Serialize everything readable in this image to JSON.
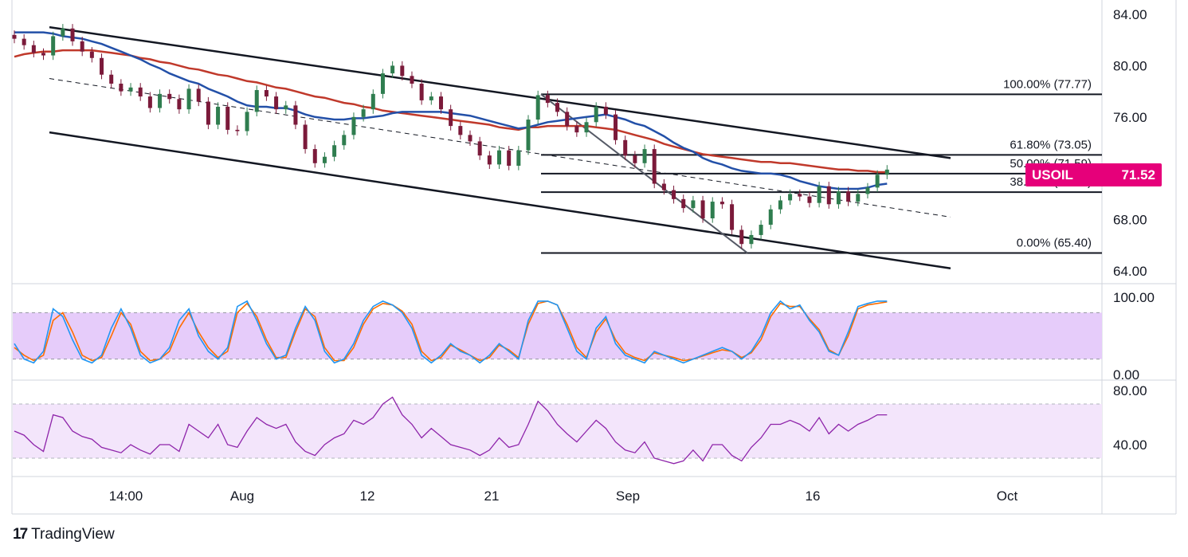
{
  "brand": {
    "name": "TradingView",
    "icon": "tradingview-logo-icon"
  },
  "colors": {
    "ma_fast": "#2350a8",
    "ma_slow": "#c0392b",
    "candle_up": "#2f7d4f",
    "candle_down": "#7b1a3a",
    "stoch_k": "#2196f3",
    "stoch_d": "#ff6d00",
    "stoch_band": "#e6ccfa",
    "rsi_line": "#8e24aa",
    "rsi_band": "#f3e5fb",
    "price_tag": "#e6007a"
  },
  "chart_data": [
    {
      "type": "line",
      "title": "",
      "symbol": "USOIL",
      "last_price": "71.52",
      "y_axis": {
        "ticks": [
          "84.00",
          "80.00",
          "76.00",
          "68.00",
          "64.00"
        ],
        "range": [
          62.8,
          84.3
        ]
      },
      "x_axis": {
        "ticks": [
          "14:00",
          "Aug",
          "12",
          "21",
          "Sep",
          "16",
          "Oct"
        ]
      },
      "close_series": [
        82.1,
        81.6,
        81.0,
        80.8,
        82.3,
        82.9,
        81.9,
        81.1,
        80.6,
        79.3,
        78.6,
        78.0,
        78.3,
        77.6,
        76.7,
        77.8,
        77.4,
        76.6,
        78.2,
        77.2,
        75.4,
        76.8,
        75.0,
        74.9,
        76.4,
        78.1,
        77.6,
        76.6,
        76.9,
        75.4,
        73.5,
        72.4,
        72.9,
        73.8,
        74.6,
        76.0,
        76.6,
        77.8,
        79.4,
        80.0,
        79.2,
        78.6,
        77.3,
        77.6,
        76.6,
        75.3,
        74.6,
        74.1,
        73.0,
        72.3,
        73.4,
        72.2,
        73.4,
        75.8,
        77.7,
        77.1,
        76.4,
        75.3,
        74.8,
        75.6,
        76.8,
        76.2,
        74.2,
        73.0,
        72.4,
        73.5,
        70.8,
        70.3,
        69.6,
        68.9,
        69.5,
        68.1,
        69.4,
        69.2,
        67.2,
        66.1,
        66.8,
        67.6,
        68.8,
        69.5,
        70.0,
        69.8,
        69.3,
        70.6,
        69.2,
        70.2,
        69.4,
        70.0,
        70.5,
        71.5,
        71.9
      ],
      "moving_averages": [
        {
          "role": "fast",
          "values": [
            82.6,
            82.6,
            82.6,
            82.6,
            82.5,
            82.3,
            82.2,
            82.1,
            81.9,
            81.7,
            81.4,
            81.1,
            80.8,
            80.5,
            80.1,
            79.8,
            79.4,
            79.1,
            78.8,
            78.6,
            78.2,
            77.9,
            77.6,
            77.2,
            76.9,
            76.8,
            76.8,
            76.7,
            76.7,
            76.5,
            76.2,
            76.0,
            75.9,
            75.8,
            75.8,
            75.9,
            75.9,
            76.0,
            76.1,
            76.3,
            76.4,
            76.4,
            76.4,
            76.4,
            76.4,
            76.3,
            76.2,
            76.1,
            75.9,
            75.7,
            75.5,
            75.3,
            75.1,
            75.2,
            75.4,
            75.6,
            75.7,
            75.8,
            75.9,
            76.0,
            76.1,
            76.2,
            76.0,
            75.8,
            75.5,
            75.3,
            74.9,
            74.5,
            74.0,
            73.6,
            73.3,
            72.8,
            72.5,
            72.3,
            72.0,
            71.8,
            71.7,
            71.6,
            71.6,
            71.5,
            71.3,
            71.0,
            70.8,
            70.6,
            70.5,
            70.4,
            70.4,
            70.4,
            70.5,
            70.7,
            70.8
          ]
        },
        {
          "role": "slow",
          "values": [
            80.7,
            80.9,
            81.0,
            81.1,
            81.1,
            81.2,
            81.2,
            81.2,
            81.2,
            81.1,
            81.0,
            80.9,
            80.8,
            80.6,
            80.5,
            80.3,
            80.2,
            80.0,
            79.8,
            79.7,
            79.5,
            79.3,
            79.2,
            79.0,
            78.8,
            78.7,
            78.5,
            78.3,
            78.2,
            78.0,
            77.8,
            77.6,
            77.5,
            77.3,
            77.1,
            77.0,
            76.8,
            76.7,
            76.5,
            76.4,
            76.3,
            76.2,
            76.1,
            76.0,
            75.9,
            75.8,
            75.7,
            75.6,
            75.5,
            75.4,
            75.2,
            75.1,
            75.0,
            75.2,
            75.2,
            75.3,
            75.3,
            75.3,
            75.3,
            75.3,
            75.2,
            75.1,
            75.0,
            74.8,
            74.6,
            74.4,
            74.2,
            73.9,
            73.7,
            73.5,
            73.3,
            73.1,
            73.0,
            72.9,
            72.8,
            72.7,
            72.6,
            72.5,
            72.5,
            72.4,
            72.4,
            72.3,
            72.2,
            72.1,
            72.0,
            71.9,
            71.9,
            71.8,
            71.8,
            71.7,
            71.7
          ]
        }
      ],
      "fibonacci": [
        {
          "label": "100.00% (77.77)",
          "value": 77.77
        },
        {
          "label": "61.80% (73.05)",
          "value": 73.05
        },
        {
          "label": "50.00% (71.59)",
          "value": 71.59
        },
        {
          "label": "38.20% (70.14)",
          "value": 70.14
        },
        {
          "label": "0.00% (65.40)",
          "value": 65.4
        }
      ],
      "channel": {
        "upper": [
          [
            0,
            83.0
          ],
          [
            87,
            72.8
          ]
        ],
        "mid": [
          [
            0,
            79.0
          ],
          [
            87,
            68.2
          ]
        ],
        "lower": [
          [
            0,
            74.8
          ],
          [
            87,
            64.2
          ]
        ]
      }
    },
    {
      "type": "line",
      "title": "",
      "indicator": "stochastic",
      "y_axis": {
        "ticks": [
          "100.00",
          "0.00"
        ],
        "range": [
          -5,
          105
        ]
      },
      "band": [
        20,
        80
      ],
      "series": [
        {
          "role": "k",
          "values": [
            40,
            20,
            15,
            30,
            85,
            75,
            45,
            20,
            15,
            25,
            60,
            85,
            60,
            25,
            15,
            20,
            35,
            70,
            85,
            50,
            30,
            20,
            35,
            88,
            95,
            70,
            40,
            20,
            25,
            60,
            88,
            70,
            30,
            15,
            20,
            40,
            70,
            88,
            95,
            90,
            80,
            60,
            25,
            15,
            25,
            40,
            30,
            25,
            15,
            25,
            40,
            30,
            20,
            70,
            95,
            95,
            90,
            60,
            30,
            20,
            60,
            75,
            40,
            25,
            20,
            15,
            30,
            25,
            20,
            15,
            20,
            25,
            30,
            35,
            30,
            20,
            30,
            50,
            80,
            95,
            85,
            90,
            70,
            55,
            30,
            25,
            55,
            88,
            92,
            95,
            95
          ]
        },
        {
          "role": "d",
          "values": [
            35,
            25,
            18,
            25,
            70,
            80,
            55,
            25,
            18,
            22,
            50,
            80,
            65,
            30,
            18,
            20,
            30,
            60,
            80,
            55,
            35,
            22,
            30,
            80,
            92,
            75,
            45,
            22,
            22,
            55,
            85,
            75,
            35,
            18,
            18,
            35,
            65,
            85,
            92,
            90,
            82,
            65,
            30,
            18,
            22,
            38,
            32,
            25,
            18,
            22,
            38,
            32,
            22,
            65,
            92,
            95,
            90,
            65,
            35,
            22,
            55,
            72,
            45,
            28,
            22,
            18,
            28,
            25,
            22,
            18,
            20,
            24,
            28,
            32,
            30,
            22,
            28,
            45,
            75,
            92,
            88,
            88,
            72,
            58,
            32,
            25,
            50,
            85,
            90,
            92,
            94
          ]
        }
      ]
    },
    {
      "type": "line",
      "title": "",
      "indicator": "rsi",
      "y_axis": {
        "ticks": [
          "80.00",
          "40.00"
        ],
        "range": [
          23,
          84
        ]
      },
      "band": [
        30,
        70
      ],
      "series": [
        {
          "role": "rsi",
          "values": [
            50,
            47,
            40,
            35,
            62,
            60,
            50,
            46,
            44,
            38,
            36,
            34,
            40,
            36,
            33,
            40,
            40,
            35,
            55,
            50,
            45,
            55,
            40,
            38,
            50,
            60,
            55,
            52,
            55,
            42,
            35,
            32,
            40,
            45,
            48,
            58,
            55,
            60,
            70,
            75,
            62,
            55,
            45,
            52,
            46,
            40,
            38,
            36,
            32,
            36,
            45,
            38,
            40,
            55,
            72,
            65,
            55,
            48,
            42,
            50,
            58,
            52,
            42,
            36,
            34,
            42,
            30,
            28,
            26,
            28,
            36,
            28,
            40,
            40,
            32,
            28,
            38,
            45,
            55,
            55,
            58,
            55,
            50,
            60,
            48,
            55,
            50,
            55,
            58,
            62,
            62
          ]
        }
      ]
    }
  ]
}
